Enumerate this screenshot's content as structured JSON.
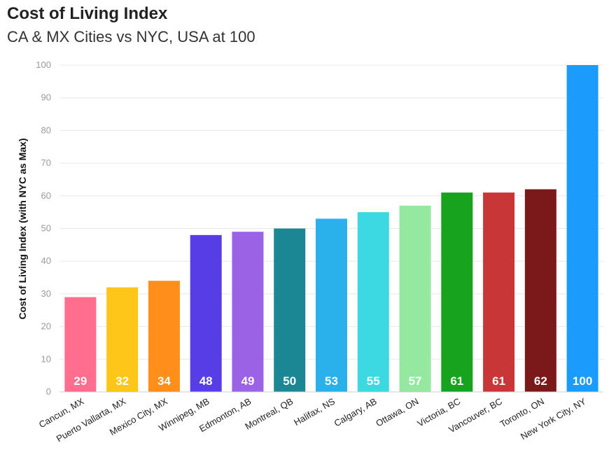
{
  "chart_data": {
    "type": "bar",
    "title": "Cost of Living Index",
    "subtitle": "CA & MX Cities vs NYC, USA at 100",
    "xlabel": "",
    "ylabel": "Cost of Living Index (with NYC as Max)",
    "ylim": [
      0,
      100
    ],
    "yticks": [
      0,
      10,
      20,
      30,
      40,
      50,
      60,
      70,
      80,
      90,
      100
    ],
    "grid": true,
    "legend": "none",
    "categories": [
      "Cancun, MX",
      "Puerto Vallarta, MX",
      "Mexico City, MX",
      "Winnipeg, MB",
      "Edmonton, AB",
      "Montreal, QB",
      "Halifax, NS",
      "Calgary, AB",
      "Ottawa, ON",
      "Victoria, BC",
      "Vancouver, BC",
      "Toronto, ON",
      "New York City, NY"
    ],
    "values": [
      29,
      32,
      34,
      48,
      49,
      50,
      53,
      55,
      57,
      61,
      61,
      62,
      100
    ],
    "colors": [
      "#ff6d8f",
      "#ffc61a",
      "#ff8e1b",
      "#573de6",
      "#9b62e6",
      "#1b8795",
      "#2ab0eb",
      "#3dd9e3",
      "#94e8a0",
      "#17a31d",
      "#c93638",
      "#7b1819",
      "#1b9cfc"
    ]
  }
}
